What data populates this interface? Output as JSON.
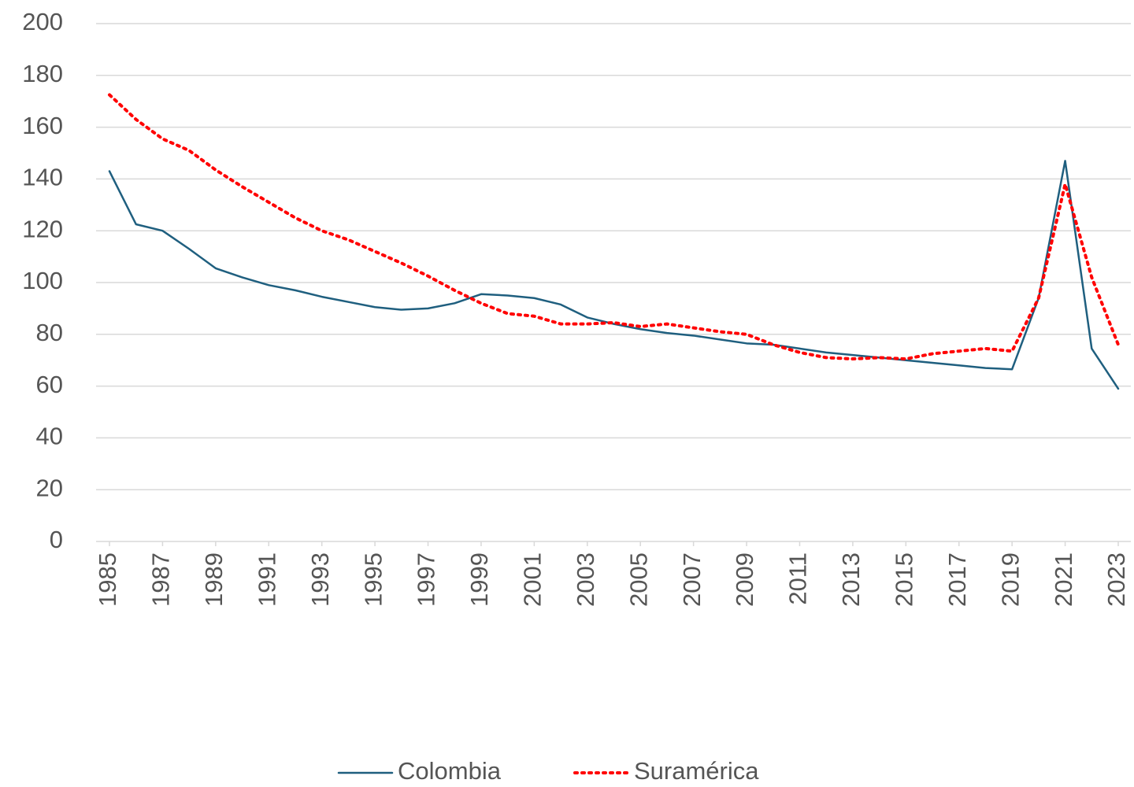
{
  "chart_data": {
    "type": "line",
    "x": [
      1985,
      1986,
      1987,
      1988,
      1989,
      1990,
      1991,
      1992,
      1993,
      1994,
      1995,
      1996,
      1997,
      1998,
      1999,
      2000,
      2001,
      2002,
      2003,
      2004,
      2005,
      2006,
      2007,
      2008,
      2009,
      2010,
      2011,
      2012,
      2013,
      2014,
      2015,
      2016,
      2017,
      2018,
      2019,
      2020,
      2021,
      2022,
      2023
    ],
    "xlim": [
      1985,
      2023
    ],
    "xticks": [
      1985,
      1987,
      1989,
      1991,
      1993,
      1995,
      1997,
      1999,
      2001,
      2003,
      2005,
      2007,
      2009,
      2011,
      2013,
      2015,
      2017,
      2019,
      2021,
      2023
    ],
    "ylim": [
      0,
      200
    ],
    "yticks": [
      0,
      20,
      40,
      60,
      80,
      100,
      120,
      140,
      160,
      180,
      200
    ],
    "grid": true,
    "legend": "bottom",
    "series": [
      {
        "name": "Colombia",
        "color": "#1f5f7f",
        "dash": "solid",
        "values": [
          143,
          122.5,
          120,
          113,
          105.5,
          102,
          99,
          97,
          94.5,
          92.5,
          90.5,
          89.5,
          90,
          92,
          95.5,
          95,
          94,
          91.5,
          86.5,
          84,
          82,
          80.5,
          79.5,
          78,
          76.5,
          76,
          74.5,
          73,
          72,
          71,
          70,
          69,
          68,
          67,
          66.5,
          94,
          147,
          74.5,
          59
        ]
      },
      {
        "name": "Suramérica",
        "color": "#ff0000",
        "dash": "dotted",
        "values": [
          172.5,
          163,
          155.5,
          151,
          143.5,
          137,
          131,
          125,
          120,
          116.5,
          112,
          107.5,
          102.5,
          97,
          92,
          88,
          87,
          84,
          84,
          84.5,
          83,
          84,
          82.5,
          81,
          80,
          76,
          73,
          71,
          70.5,
          71,
          70.5,
          72.5,
          73.5,
          74.5,
          73.5,
          94,
          138,
          102,
          76
        ]
      }
    ]
  }
}
